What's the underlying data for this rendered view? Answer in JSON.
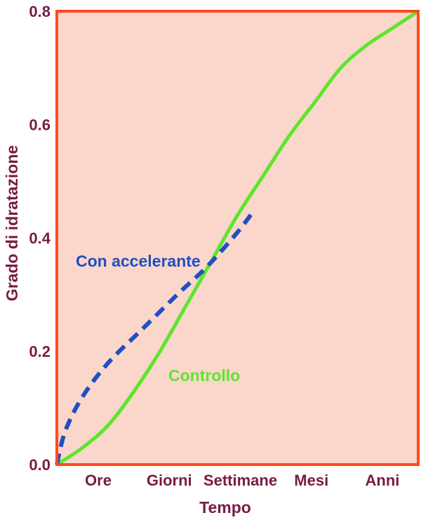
{
  "chart_data": {
    "type": "line",
    "xlabel": "Tempo",
    "ylabel": "Grado di idratazione",
    "ylim": [
      0,
      0.8
    ],
    "yticks": [
      "0.0",
      "0.2",
      "0.4",
      "0.6",
      "0.8"
    ],
    "categories": [
      "Ore",
      "Giorni",
      "Settimane",
      "Mesi",
      "Anni"
    ],
    "grid": false,
    "series": [
      {
        "name": "Controllo",
        "style": "solid",
        "color": "#5ce62a",
        "points": [
          [
            0.0,
            0.0
          ],
          [
            0.3,
            0.03
          ],
          [
            0.6,
            0.07
          ],
          [
            0.9,
            0.13
          ],
          [
            1.2,
            0.2
          ],
          [
            1.5,
            0.28
          ],
          [
            1.8,
            0.36
          ],
          [
            2.1,
            0.44
          ],
          [
            2.4,
            0.51
          ],
          [
            2.7,
            0.58
          ],
          [
            3.0,
            0.64
          ],
          [
            3.3,
            0.7
          ],
          [
            3.6,
            0.74
          ],
          [
            3.9,
            0.77
          ],
          [
            4.2,
            0.8
          ]
        ]
      },
      {
        "name": "Con accelerante",
        "style": "dashed",
        "color": "#1f4fc2",
        "points": [
          [
            0.0,
            0.0
          ],
          [
            0.1,
            0.06
          ],
          [
            0.3,
            0.12
          ],
          [
            0.6,
            0.18
          ],
          [
            1.0,
            0.24
          ],
          [
            1.4,
            0.3
          ],
          [
            1.75,
            0.35
          ],
          [
            2.1,
            0.41
          ],
          [
            2.3,
            0.45
          ]
        ]
      }
    ]
  },
  "colors": {
    "plot_background": "#fbd6cb",
    "frame": "#ff4a1f",
    "text": "#7a1a45"
  }
}
